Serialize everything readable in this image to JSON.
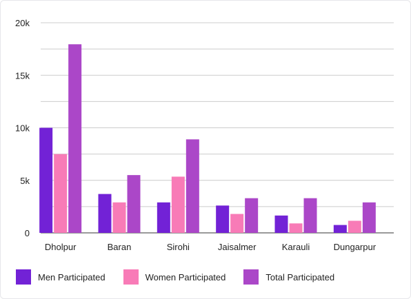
{
  "chart_data": {
    "type": "bar",
    "categories": [
      "Dholpur",
      "Baran",
      "Sirohi",
      "Jaisalmer",
      "Karauli",
      "Dungarpur"
    ],
    "series": [
      {
        "name": "Men Participated",
        "color": "#7222d6",
        "values": [
          10000,
          3700,
          2900,
          2600,
          1650,
          750
        ]
      },
      {
        "name": "Women Participated",
        "color": "#f87bb7",
        "values": [
          7500,
          2900,
          5350,
          1800,
          900,
          1150
        ]
      },
      {
        "name": "Total Participated",
        "color": "#ab47c8",
        "values": [
          17950,
          5500,
          8900,
          3300,
          3300,
          2900
        ]
      }
    ],
    "ylim": [
      0,
      20000
    ],
    "yticks": [
      0,
      5000,
      10000,
      15000,
      20000
    ],
    "ytick_labels": [
      "0",
      "5k",
      "10k",
      "15k",
      "20k"
    ],
    "grid": true,
    "legend_position": "bottom-left",
    "title": "",
    "xlabel": "",
    "ylabel": ""
  }
}
